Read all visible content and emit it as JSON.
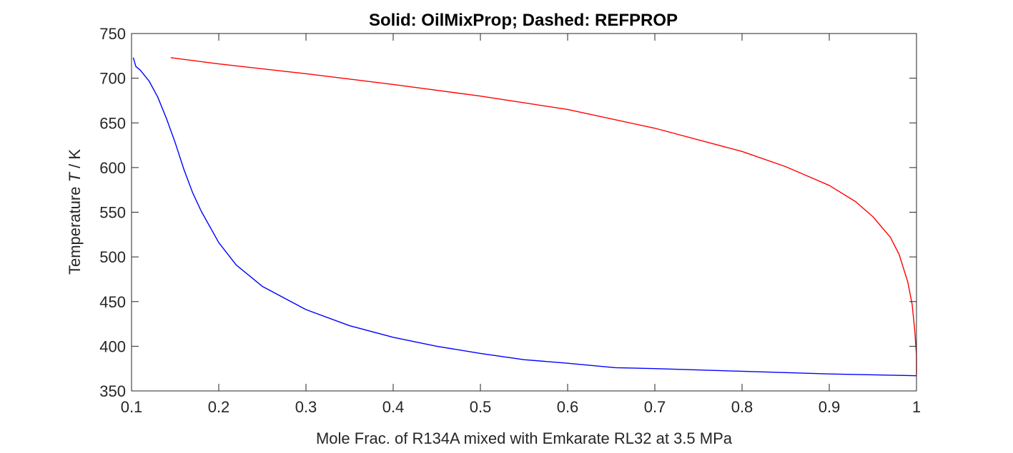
{
  "chart_data": {
    "type": "line",
    "title": "Solid: OilMixProp; Dashed: REFPROP",
    "xlabel": "Mole Frac. of R134A mixed with Emkarate RL32 at 3.5 MPa",
    "ylabel_prefix": "Temperature ",
    "ylabel_var": "T",
    "ylabel_unit": " / K",
    "xlim": [
      0.1,
      1.0
    ],
    "ylim": [
      350,
      750
    ],
    "xticks": [
      0.1,
      0.2,
      0.3,
      0.4,
      0.5,
      0.6,
      0.7,
      0.8,
      0.9,
      1
    ],
    "xtick_labels": [
      "0.1",
      "0.2",
      "0.3",
      "0.4",
      "0.5",
      "0.6",
      "0.7",
      "0.8",
      "0.9",
      "1"
    ],
    "yticks": [
      350,
      400,
      450,
      500,
      550,
      600,
      650,
      700,
      750
    ],
    "ytick_labels": [
      "350",
      "400",
      "450",
      "500",
      "550",
      "600",
      "650",
      "700",
      "750"
    ],
    "grid": false,
    "series": [
      {
        "color": "#ff0000",
        "style": "solid",
        "x": [
          0.145,
          0.2,
          0.3,
          0.4,
          0.5,
          0.6,
          0.7,
          0.8,
          0.85,
          0.9,
          0.93,
          0.95,
          0.97,
          0.98,
          0.99,
          0.995,
          0.998,
          1.0,
          1.0
        ],
        "y": [
          723,
          716,
          705,
          693,
          680,
          665,
          644,
          618,
          601,
          580,
          562,
          545,
          522,
          503,
          472,
          447,
          418,
          390,
          368
        ]
      },
      {
        "color": "#0000ff",
        "style": "solid",
        "x": [
          0.102,
          0.105,
          0.11,
          0.12,
          0.13,
          0.14,
          0.15,
          0.16,
          0.17,
          0.18,
          0.2,
          0.22,
          0.25,
          0.3,
          0.35,
          0.4,
          0.45,
          0.5,
          0.55,
          0.6,
          0.655,
          0.7,
          0.8,
          0.9,
          1.0
        ],
        "y": [
          723,
          713,
          709,
          697,
          679,
          655,
          628,
          598,
          572,
          551,
          516,
          491,
          467,
          441,
          423,
          410,
          400,
          392,
          385,
          381,
          376,
          375,
          372,
          369,
          367
        ]
      }
    ]
  }
}
